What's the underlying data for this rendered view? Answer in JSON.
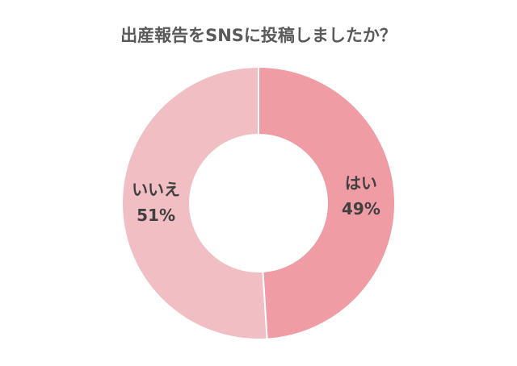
{
  "chart_data": {
    "type": "pie",
    "variant": "donut",
    "title": "出産報告をSNSに投稿しましたか？",
    "categories": [
      "はい",
      "いいえ"
    ],
    "values": [
      49,
      51
    ],
    "value_labels": [
      "49%",
      "51%"
    ],
    "colors": [
      "#ef9ca4",
      "#f1bec3"
    ],
    "start": "top",
    "direction": "clockwise",
    "legend": "none"
  }
}
